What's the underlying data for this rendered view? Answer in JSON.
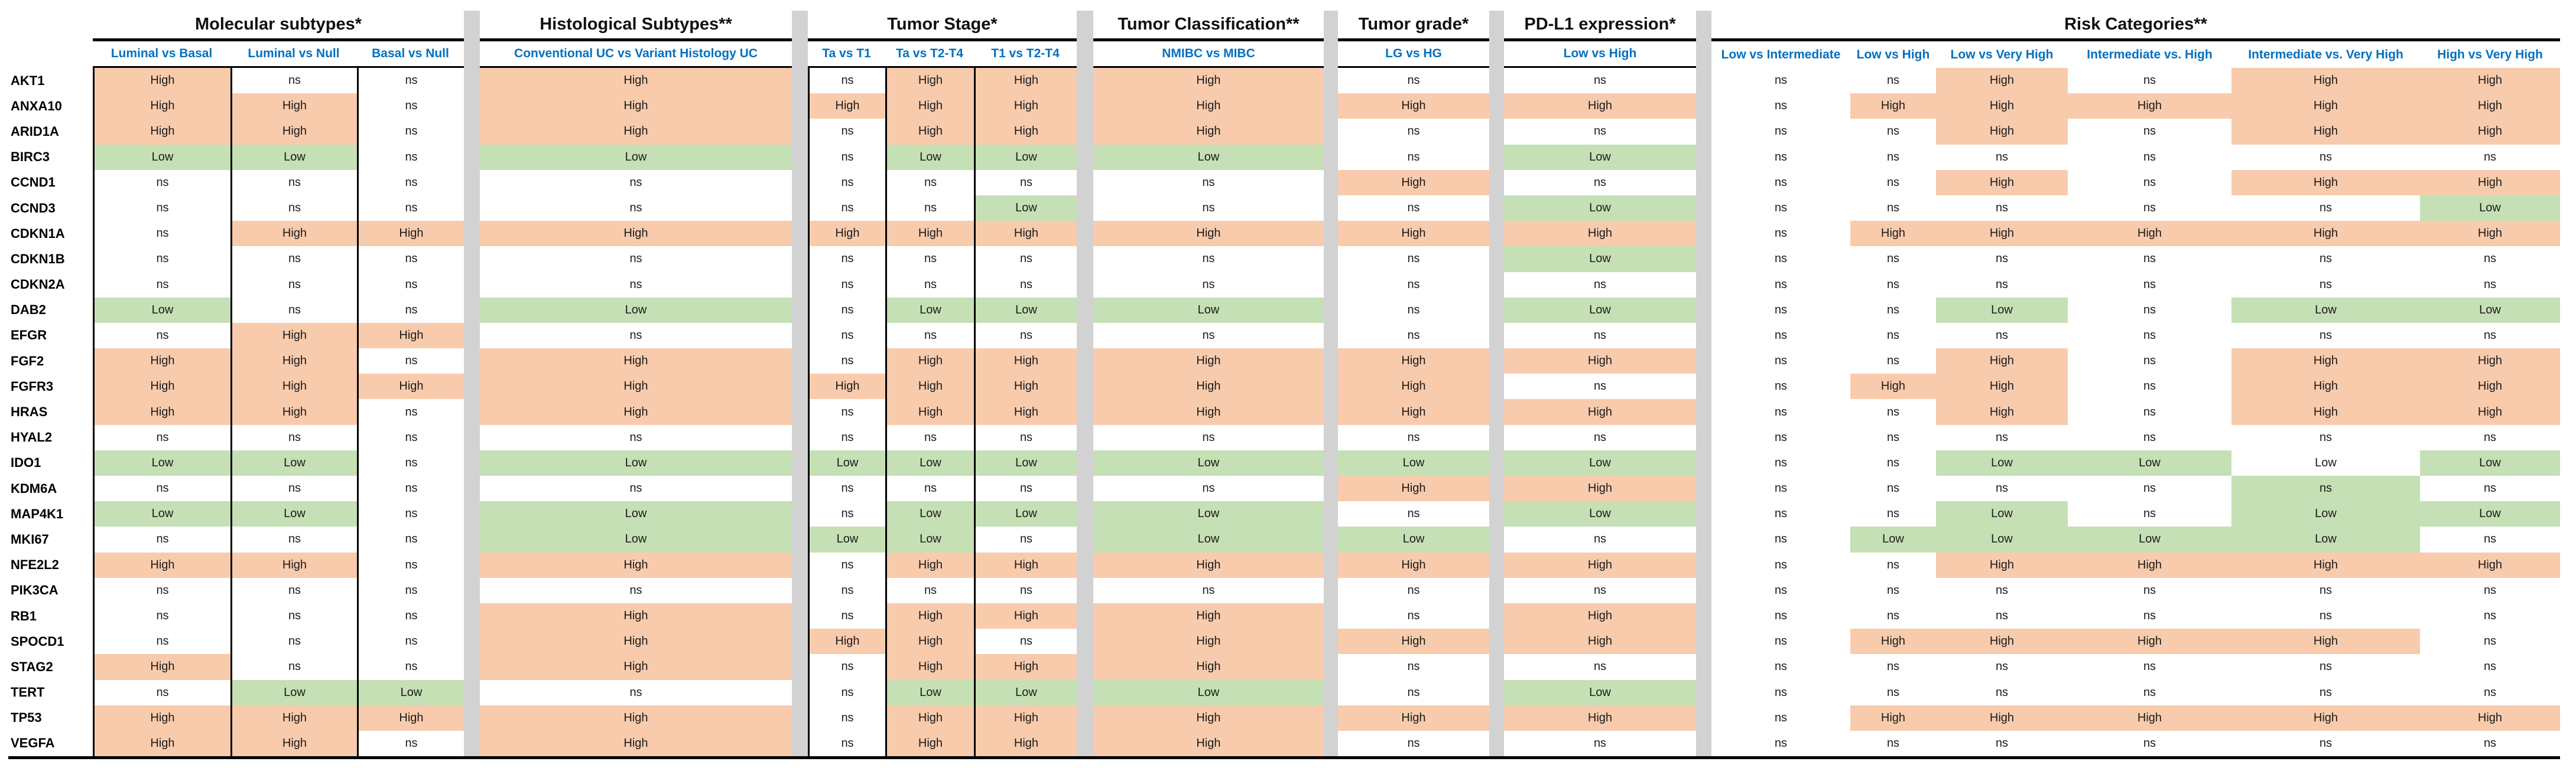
{
  "chart_data": {
    "type": "heatmap",
    "legend": {
      "high_label": "High",
      "low_label": "Low",
      "ns_label": "ns"
    },
    "colors": {
      "high_fill": "#F8CBAD",
      "low_fill": "#C5E0B4",
      "header_text": "#0070C0",
      "spacer_gray": "#D2D2D2",
      "rule_black": "#000000"
    },
    "groups": [
      {
        "title": "Molecular subtypes*",
        "columns": [
          "Luminal vs Basal",
          "Luminal vs Null",
          "Basal vs Null"
        ]
      },
      {
        "title": "Histological Subtypes**",
        "columns": [
          "Conventional UC vs Variant Histology UC"
        ]
      },
      {
        "title": "Tumor Stage*",
        "columns": [
          "Ta vs T1",
          "Ta vs T2-T4",
          "T1 vs T2-T4"
        ]
      },
      {
        "title": "Tumor Classification**",
        "columns": [
          "NMIBC vs MIBC"
        ]
      },
      {
        "title": "Tumor grade*",
        "columns": [
          "LG vs HG"
        ]
      },
      {
        "title": "PD-L1 expression*",
        "columns": [
          "Low vs High"
        ]
      },
      {
        "title": "Risk Categories**",
        "columns": [
          "Low vs Intermediate",
          "Low vs High",
          "Low vs Very High",
          "Intermediate vs. High",
          "Intermediate vs. Very High",
          "High vs Very High"
        ]
      }
    ],
    "genes": [
      "AKT1",
      "ANXA10",
      "ARID1A",
      "BIRC3",
      "CCND1",
      "CCND3",
      "CDKN1A",
      "CDKN1B",
      "CDKN2A",
      "DAB2",
      "EFGR",
      "FGF2",
      "FGFR3",
      "HRAS",
      "HYAL2",
      "IDO1",
      "KDM6A",
      "MAP4K1",
      "MKI67",
      "NFE2L2",
      "PIK3CA",
      "RB1",
      "SPOCD1",
      "STAG2",
      "TERT",
      "TP53",
      "VEGFA"
    ],
    "values": {
      "AKT1": [
        "High",
        "ns",
        "ns",
        "High",
        "ns",
        "High",
        "High",
        "High",
        "ns",
        "ns",
        "ns",
        "ns",
        "High",
        "ns",
        "High",
        "High"
      ],
      "ANXA10": [
        "High",
        "High",
        "ns",
        "High",
        "High",
        "High",
        "High",
        "High",
        "High",
        "High",
        "ns",
        "High",
        "High",
        "High",
        "High",
        "High"
      ],
      "ARID1A": [
        "High",
        "High",
        "ns",
        "High",
        "ns",
        "High",
        "High",
        "High",
        "ns",
        "ns",
        "ns",
        "ns",
        "High",
        "ns",
        "High",
        "High"
      ],
      "BIRC3": [
        "Low",
        "Low",
        "ns",
        "Low",
        "ns",
        "Low",
        "Low",
        "Low",
        "ns",
        "Low",
        "ns",
        "ns",
        "ns",
        "ns",
        "ns",
        "ns"
      ],
      "CCND1": [
        "ns",
        "ns",
        "ns",
        "ns",
        "ns",
        "ns",
        "ns",
        "ns",
        "High",
        "ns",
        "ns",
        "ns",
        "High",
        "ns",
        "High",
        "High"
      ],
      "CCND3": [
        "ns",
        "ns",
        "ns",
        "ns",
        "ns",
        "ns",
        "Low",
        "ns",
        "ns",
        "Low",
        "ns",
        "ns",
        "ns",
        "ns",
        "ns",
        "Low"
      ],
      "CDKN1A": [
        "ns",
        "High",
        "High",
        "High",
        "High",
        "High",
        "High",
        "High",
        "High",
        "High",
        "ns",
        "High",
        "High",
        "High",
        "High",
        "High"
      ],
      "CDKN1B": [
        "ns",
        "ns",
        "ns",
        "ns",
        "ns",
        "ns",
        "ns",
        "ns",
        "ns",
        "Low",
        "ns",
        "ns",
        "ns",
        "ns",
        "ns",
        "ns"
      ],
      "CDKN2A": [
        "ns",
        "ns",
        "ns",
        "ns",
        "ns",
        "ns",
        "ns",
        "ns",
        "ns",
        "ns",
        "ns",
        "ns",
        "ns",
        "ns",
        "ns",
        "ns"
      ],
      "DAB2": [
        "Low",
        "ns",
        "ns",
        "Low",
        "ns",
        "Low",
        "Low",
        "Low",
        "ns",
        "Low",
        "ns",
        "ns",
        "Low",
        "ns",
        "Low",
        "Low"
      ],
      "EFGR": [
        "ns",
        "High",
        "High",
        "ns",
        "ns",
        "ns",
        "ns",
        "ns",
        "ns",
        "ns",
        "ns",
        "ns",
        "ns",
        "ns",
        "ns",
        "ns"
      ],
      "FGF2": [
        "High",
        "High",
        "ns",
        "High",
        "ns",
        "High",
        "High",
        "High",
        "High",
        "High",
        "ns",
        "ns",
        "High",
        "ns",
        "High",
        "High"
      ],
      "FGFR3": [
        "High",
        "High",
        "High",
        "High",
        "High",
        "High",
        "High",
        "High",
        "High",
        "ns",
        "ns",
        "High",
        "High",
        "ns",
        "High",
        "High"
      ],
      "HRAS": [
        "High",
        "High",
        "ns",
        "High",
        "ns",
        "High",
        "High",
        "High",
        "High",
        "High",
        "ns",
        "ns",
        "High",
        "ns",
        "High",
        "High"
      ],
      "HYAL2": [
        "ns",
        "ns",
        "ns",
        "ns",
        "ns",
        "ns",
        "ns",
        "ns",
        "ns",
        "ns",
        "ns",
        "ns",
        "ns",
        "ns",
        "ns",
        "ns"
      ],
      "IDO1": [
        "Low",
        "Low",
        "ns",
        "Low",
        "Low",
        "Low",
        "Low",
        "Low",
        "Low",
        "Low",
        "ns",
        "ns",
        "Low",
        "Low",
        "Low",
        "Low"
      ],
      "KDM6A": [
        "ns",
        "ns",
        "ns",
        "ns",
        "ns",
        "ns",
        "ns",
        "ns",
        "High",
        "High",
        "ns",
        "ns",
        "ns",
        "ns",
        "ns",
        "ns"
      ],
      "MAP4K1": [
        "Low",
        "Low",
        "ns",
        "Low",
        "ns",
        "Low",
        "Low",
        "Low",
        "ns",
        "Low",
        "ns",
        "ns",
        "Low",
        "ns",
        "Low",
        "Low"
      ],
      "MKI67": [
        "ns",
        "ns",
        "ns",
        "Low",
        "Low",
        "Low",
        "ns",
        "Low",
        "Low",
        "ns",
        "ns",
        "Low",
        "Low",
        "Low",
        "Low",
        "ns"
      ],
      "NFE2L2": [
        "High",
        "High",
        "ns",
        "High",
        "ns",
        "High",
        "High",
        "High",
        "High",
        "High",
        "ns",
        "ns",
        "High",
        "High",
        "High",
        "High"
      ],
      "PIK3CA": [
        "ns",
        "ns",
        "ns",
        "ns",
        "ns",
        "ns",
        "ns",
        "ns",
        "ns",
        "ns",
        "ns",
        "ns",
        "ns",
        "ns",
        "ns",
        "ns"
      ],
      "RB1": [
        "ns",
        "ns",
        "ns",
        "High",
        "ns",
        "High",
        "High",
        "High",
        "ns",
        "High",
        "ns",
        "ns",
        "ns",
        "ns",
        "ns",
        "ns"
      ],
      "SPOCD1": [
        "ns",
        "ns",
        "ns",
        "High",
        "High",
        "High",
        "ns",
        "High",
        "High",
        "High",
        "ns",
        "High",
        "High",
        "High",
        "High",
        "ns"
      ],
      "STAG2": [
        "High",
        "ns",
        "ns",
        "High",
        "ns",
        "High",
        "High",
        "High",
        "ns",
        "ns",
        "ns",
        "ns",
        "ns",
        "ns",
        "ns",
        "ns"
      ],
      "TERT": [
        "ns",
        "Low",
        "Low",
        "ns",
        "ns",
        "Low",
        "Low",
        "Low",
        "ns",
        "Low",
        "ns",
        "ns",
        "ns",
        "ns",
        "ns",
        "ns"
      ],
      "TP53": [
        "High",
        "High",
        "High",
        "High",
        "ns",
        "High",
        "High",
        "High",
        "High",
        "High",
        "ns",
        "High",
        "High",
        "High",
        "High",
        "High"
      ],
      "VEGFA": [
        "High",
        "High",
        "ns",
        "High",
        "ns",
        "High",
        "High",
        "High",
        "ns",
        "ns",
        "ns",
        "ns",
        "ns",
        "ns",
        "ns",
        "ns"
      ]
    },
    "bg_overrides": {
      "IDO1.14": "plain",
      "KDM6A.14": "low"
    }
  }
}
